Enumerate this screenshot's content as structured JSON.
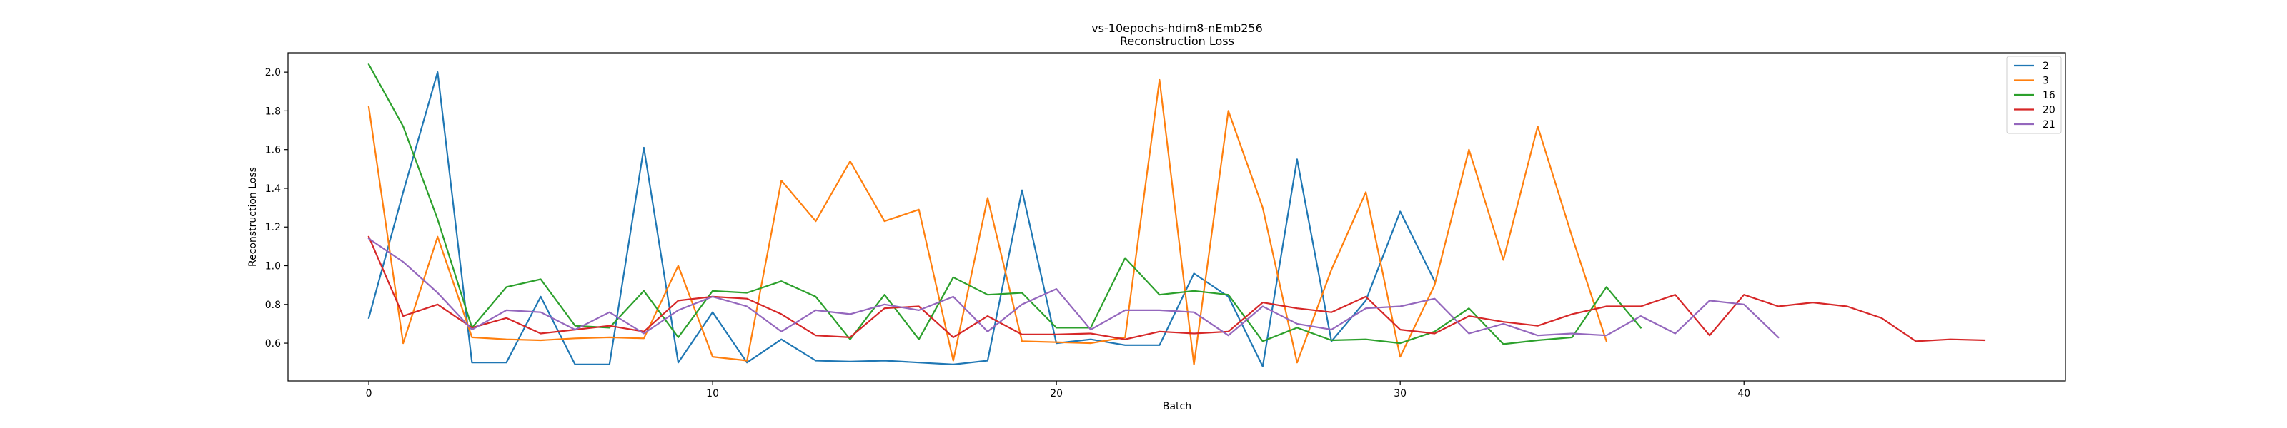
{
  "chart_data": {
    "type": "line",
    "title": "vs-10epochs-hdim8-nEmb256",
    "subtitle": "Reconstruction Loss",
    "xlabel": "Batch",
    "ylabel": "Reconstruction Loss",
    "xlim": [
      -2.35,
      49.35
    ],
    "ylim": [
      0.405,
      2.1
    ],
    "xticks": [
      0,
      10,
      20,
      30,
      40
    ],
    "yticks": [
      0.6,
      0.8,
      1.0,
      1.2,
      1.4,
      1.6,
      1.8,
      2.0
    ],
    "grid": false,
    "legend_position": "top-right",
    "series": [
      {
        "name": "2",
        "color": "#1f77b4",
        "x": [
          0,
          1,
          2,
          3,
          4,
          5,
          6,
          7,
          8,
          9,
          10,
          11,
          12,
          13,
          14,
          15,
          16,
          17,
          18,
          19,
          20,
          21,
          22,
          23,
          24,
          25,
          26,
          27,
          28,
          29,
          30,
          31
        ],
        "values": [
          0.73,
          1.38,
          2.0,
          0.5,
          0.5,
          0.84,
          0.49,
          0.49,
          1.61,
          0.5,
          0.76,
          0.5,
          0.62,
          0.51,
          0.505,
          0.51,
          0.5,
          0.49,
          0.51,
          1.39,
          0.6,
          0.62,
          0.59,
          0.59,
          0.96,
          0.84,
          0.48,
          1.55,
          0.61,
          0.82,
          1.28,
          0.92
        ]
      },
      {
        "name": "3",
        "color": "#ff7f0e",
        "x": [
          0,
          1,
          2,
          3,
          4,
          5,
          6,
          7,
          8,
          9,
          10,
          11,
          12,
          13,
          14,
          15,
          16,
          17,
          18,
          19,
          20,
          21,
          22,
          23,
          24,
          25,
          26,
          27,
          28,
          29,
          30,
          31,
          32,
          33,
          34,
          35,
          36
        ],
        "values": [
          1.82,
          0.6,
          1.15,
          0.63,
          0.62,
          0.615,
          0.625,
          0.63,
          0.625,
          1.0,
          0.53,
          0.51,
          1.44,
          1.23,
          1.54,
          1.23,
          1.29,
          0.51,
          1.35,
          0.61,
          0.605,
          0.6,
          0.63,
          1.96,
          0.49,
          1.8,
          1.3,
          0.5,
          0.98,
          1.38,
          0.53,
          0.9,
          1.6,
          1.03,
          1.72,
          1.15,
          0.61
        ]
      },
      {
        "name": "16",
        "color": "#2ca02c",
        "x": [
          0,
          1,
          2,
          3,
          4,
          5,
          6,
          7,
          8,
          9,
          10,
          11,
          12,
          13,
          14,
          15,
          16,
          17,
          18,
          19,
          20,
          21,
          22,
          23,
          24,
          25,
          26,
          27,
          28,
          29,
          30,
          31,
          32,
          33,
          34,
          35,
          36,
          37
        ],
        "values": [
          2.04,
          1.72,
          1.24,
          0.68,
          0.89,
          0.93,
          0.69,
          0.68,
          0.87,
          0.63,
          0.87,
          0.86,
          0.92,
          0.84,
          0.62,
          0.85,
          0.62,
          0.94,
          0.85,
          0.86,
          0.68,
          0.68,
          1.04,
          0.85,
          0.87,
          0.85,
          0.61,
          0.68,
          0.615,
          0.62,
          0.6,
          0.66,
          0.78,
          0.595,
          0.615,
          0.63,
          0.89,
          0.68
        ]
      },
      {
        "name": "20",
        "color": "#d62728",
        "x": [
          0,
          1,
          2,
          3,
          4,
          5,
          6,
          7,
          8,
          9,
          10,
          11,
          12,
          13,
          14,
          15,
          16,
          17,
          18,
          19,
          20,
          21,
          22,
          23,
          24,
          25,
          26,
          27,
          28,
          29,
          30,
          31,
          32,
          33,
          34,
          35,
          36,
          37,
          38,
          39,
          40,
          41,
          42,
          43,
          44,
          45,
          46,
          47
        ],
        "values": [
          1.15,
          0.74,
          0.8,
          0.68,
          0.73,
          0.65,
          0.67,
          0.69,
          0.66,
          0.82,
          0.84,
          0.83,
          0.75,
          0.64,
          0.63,
          0.78,
          0.79,
          0.63,
          0.74,
          0.645,
          0.645,
          0.65,
          0.62,
          0.66,
          0.65,
          0.66,
          0.81,
          0.78,
          0.76,
          0.84,
          0.67,
          0.65,
          0.74,
          0.71,
          0.69,
          0.75,
          0.79,
          0.79,
          0.85,
          0.64,
          0.85,
          0.79,
          0.81,
          0.79,
          0.73,
          0.61,
          0.62,
          0.615
        ]
      },
      {
        "name": "21",
        "color": "#9467bd",
        "x": [
          0,
          1,
          2,
          3,
          4,
          5,
          6,
          7,
          8,
          9,
          10,
          11,
          12,
          13,
          14,
          15,
          16,
          17,
          18,
          19,
          20,
          21,
          22,
          23,
          24,
          25,
          26,
          27,
          28,
          29,
          30,
          31,
          32,
          33,
          34,
          35,
          36,
          37,
          38,
          39,
          40,
          41
        ],
        "values": [
          1.14,
          1.02,
          0.86,
          0.67,
          0.77,
          0.76,
          0.67,
          0.76,
          0.65,
          0.77,
          0.84,
          0.79,
          0.66,
          0.77,
          0.75,
          0.8,
          0.77,
          0.84,
          0.66,
          0.8,
          0.88,
          0.67,
          0.77,
          0.77,
          0.76,
          0.64,
          0.79,
          0.7,
          0.67,
          0.78,
          0.79,
          0.83,
          0.65,
          0.7,
          0.64,
          0.65,
          0.64,
          0.74,
          0.65,
          0.82,
          0.8,
          0.63
        ]
      }
    ]
  }
}
